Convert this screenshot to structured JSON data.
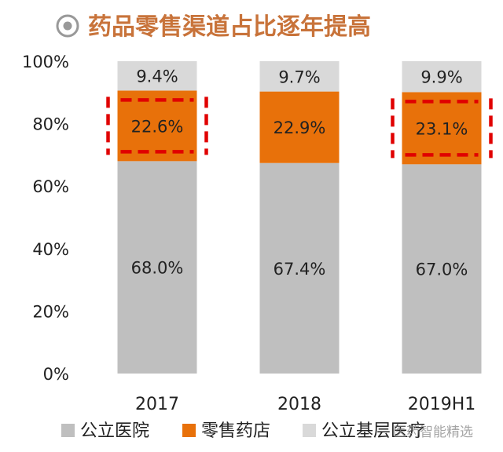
{
  "title": "药品零售渠道占比逐年提高",
  "colors": {
    "title": "#c8733a",
    "hospital": "#bfbfbf",
    "retail": "#e8710a",
    "grassroots": "#d9d9d9",
    "highlight": "#e00000",
    "title_icon": "#999999"
  },
  "watermark": "医药智能精选",
  "chart_data": {
    "type": "bar",
    "stacked": true,
    "categories": [
      "2017",
      "2018",
      "2019H1"
    ],
    "series": [
      {
        "name": "公立医院",
        "key": "hospital",
        "values": [
          68.0,
          67.4,
          67.0
        ],
        "labels": [
          "68.0%",
          "67.4%",
          "67.0%"
        ]
      },
      {
        "name": "零售药店",
        "key": "retail",
        "values": [
          22.6,
          22.9,
          23.1
        ],
        "labels": [
          "22.6%",
          "22.9%",
          "23.1%"
        ]
      },
      {
        "name": "公立基层医疗",
        "key": "grassroots",
        "values": [
          9.4,
          9.7,
          9.9
        ],
        "labels": [
          "9.4%",
          "9.7%",
          "9.9%"
        ]
      }
    ],
    "ylim": [
      0,
      100
    ],
    "yticks": [
      "0%",
      "20%",
      "40%",
      "60%",
      "80%",
      "100%"
    ],
    "highlighted": [
      {
        "category": "2017",
        "series": "零售药店"
      },
      {
        "category": "2019H1",
        "series": "零售药店"
      }
    ],
    "legend_position": "bottom"
  }
}
